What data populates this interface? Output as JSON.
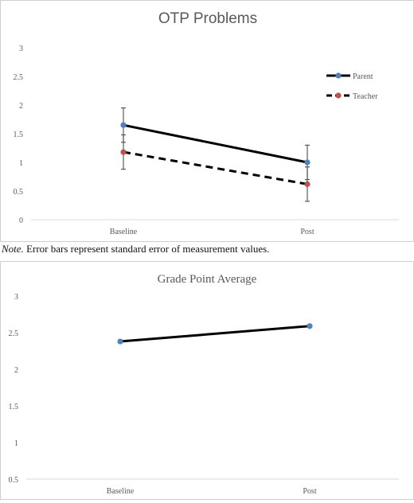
{
  "chart_data": [
    {
      "type": "line",
      "title": "OTP Problems",
      "categories": [
        "Baseline",
        "Post"
      ],
      "ylim": [
        0,
        3
      ],
      "yticks": [
        "0",
        "0.5",
        "1",
        "1.5",
        "2",
        "2.5",
        "3"
      ],
      "grid": false,
      "legend_position": "right",
      "series": [
        {
          "name": "Parent",
          "values": [
            1.65,
            1.0
          ],
          "error": [
            0.3,
            0.3
          ],
          "color": "#000000",
          "marker_color": "#4e81bd",
          "dash": "solid"
        },
        {
          "name": "Teacher",
          "values": [
            1.18,
            0.62
          ],
          "error": [
            0.3,
            0.3
          ],
          "color": "#000000",
          "marker_color": "#c0504d",
          "dash": "dashed"
        }
      ]
    },
    {
      "type": "line",
      "title": "Grade Point Average",
      "categories": [
        "Baseline",
        "Post"
      ],
      "ylim": [
        0.5,
        3
      ],
      "yticks": [
        "0.5",
        "1",
        "1.5",
        "2",
        "2.5",
        "3"
      ],
      "grid": false,
      "series": [
        {
          "values": [
            2.38,
            2.59
          ],
          "color": "#000000",
          "marker_color": "#4e81bd",
          "dash": "solid"
        }
      ]
    }
  ],
  "note": {
    "label": "Note.",
    "text": " Error bars represent standard error of measurement values."
  }
}
